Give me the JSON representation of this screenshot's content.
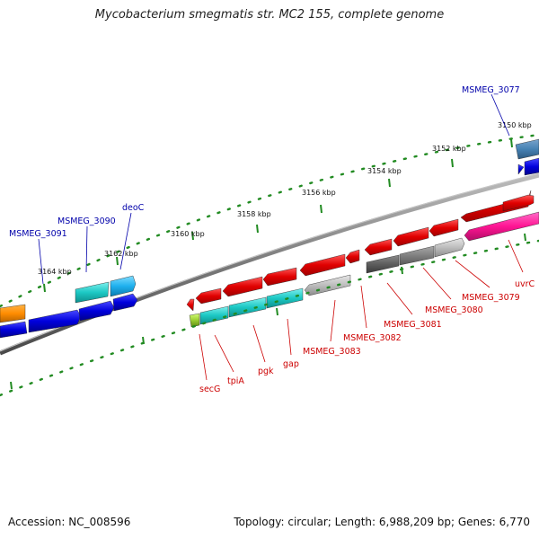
{
  "title": "Mycobacterium smegmatis str. MC2 155, complete genome",
  "footer": {
    "accession": "Accession: NC_008596",
    "topology": "Topology: circular; Length: 6,988,209 bp; Genes: 6,770"
  },
  "colors": {
    "backbone": "#808080",
    "tick": "#228b22",
    "label_forward": "#0000aa",
    "label_reverse": "#cc0000"
  },
  "ruler_labels": [
    "3150 kbp",
    "3152 kbp",
    "3154 kbp",
    "3156 kbp",
    "3158 kbp",
    "3160 kbp",
    "3162 kbp",
    "3164 kbp"
  ],
  "gene_labels": {
    "msmeg_3077": "MSMEG_3077",
    "deoc": "deoC",
    "msmeg_3090": "MSMEG_3090",
    "msmeg_3091": "MSMEG_3091",
    "secg": "secG",
    "tpia": "tpiA",
    "pgk": "pgk",
    "gap": "gap",
    "msmeg_3083": "MSMEG_3083",
    "msmeg_3082": "MSMEG_3082",
    "msmeg_3081": "MSMEG_3081",
    "msmeg_3080": "MSMEG_3080",
    "msmeg_3079": "MSMEG_3079",
    "uvrc": "uvrC"
  }
}
